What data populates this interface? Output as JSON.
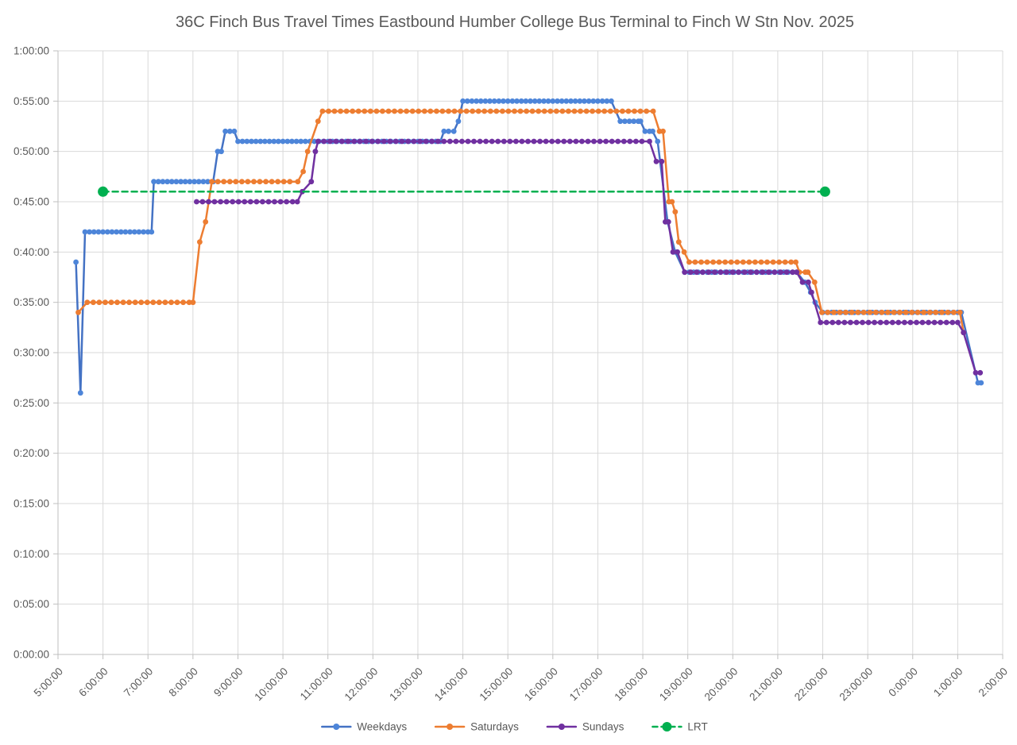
{
  "chart_data": {
    "type": "line",
    "title": "36C Finch Bus Travel Times Eastbound Humber College Bus Terminal to Finch W Stn Nov. 2025",
    "xlabel": "",
    "ylabel": "",
    "grid": true,
    "legend_position": "bottom",
    "x_axis": {
      "start_hour": 5,
      "end_hour": 26,
      "tick_interval_hours": 1,
      "labels": [
        "5:00:00",
        "6:00:00",
        "7:00:00",
        "8:00:00",
        "9:00:00",
        "10:00:00",
        "11:00:00",
        "12:00:00",
        "13:00:00",
        "14:00:00",
        "15:00:00",
        "16:00:00",
        "17:00:00",
        "18:00:00",
        "19:00:00",
        "20:00:00",
        "21:00:00",
        "22:00:00",
        "23:00:00",
        "0:00:00",
        "1:00:00",
        "2:00:00"
      ]
    },
    "y_axis": {
      "min_minutes": 0,
      "max_minutes": 60,
      "step_minutes": 5,
      "labels": [
        "0:00:00",
        "0:05:00",
        "0:10:00",
        "0:15:00",
        "0:20:00",
        "0:25:00",
        "0:30:00",
        "0:35:00",
        "0:40:00",
        "0:45:00",
        "0:50:00",
        "0:55:00",
        "1:00:00"
      ]
    },
    "series": [
      {
        "name": "Weekdays",
        "color": "#4472C4",
        "marker_color": "#4d85d9",
        "dash": null,
        "marker_interval_minutes": 6,
        "points_format": [
          "hour_24h_decimal",
          "travel_minutes"
        ],
        "points": [
          [
            5.4,
            39
          ],
          [
            5.5,
            26
          ],
          [
            5.6,
            42
          ],
          [
            7.08,
            42
          ],
          [
            7.13,
            47
          ],
          [
            8.45,
            47
          ],
          [
            8.55,
            50
          ],
          [
            8.63,
            50
          ],
          [
            8.72,
            52
          ],
          [
            8.92,
            52
          ],
          [
            9.0,
            51
          ],
          [
            13.5,
            51
          ],
          [
            13.58,
            52
          ],
          [
            13.8,
            52
          ],
          [
            13.9,
            53
          ],
          [
            14.0,
            55
          ],
          [
            17.3,
            55
          ],
          [
            17.5,
            53
          ],
          [
            17.95,
            53
          ],
          [
            18.05,
            52
          ],
          [
            18.22,
            52
          ],
          [
            18.33,
            51
          ],
          [
            18.55,
            43
          ],
          [
            18.72,
            40
          ],
          [
            18.93,
            38
          ],
          [
            21.42,
            38
          ],
          [
            21.6,
            37
          ],
          [
            21.73,
            36
          ],
          [
            21.83,
            35
          ],
          [
            22.0,
            34
          ],
          [
            25.08,
            34
          ],
          [
            25.45,
            27
          ],
          [
            25.52,
            27
          ]
        ]
      },
      {
        "name": "Saturdays",
        "color": "#ED7D31",
        "marker_color": "#ED7D31",
        "dash": null,
        "marker_interval_minutes": 8,
        "points_format": [
          "hour_24h_decimal",
          "travel_minutes"
        ],
        "points": [
          [
            5.45,
            34
          ],
          [
            5.65,
            35
          ],
          [
            8.0,
            35
          ],
          [
            8.15,
            41
          ],
          [
            8.28,
            43
          ],
          [
            8.42,
            47
          ],
          [
            10.33,
            47
          ],
          [
            10.45,
            48
          ],
          [
            10.55,
            50
          ],
          [
            10.78,
            53
          ],
          [
            10.88,
            54
          ],
          [
            18.23,
            54
          ],
          [
            18.37,
            52
          ],
          [
            18.45,
            52
          ],
          [
            18.58,
            45
          ],
          [
            18.65,
            45
          ],
          [
            18.72,
            44
          ],
          [
            18.8,
            41
          ],
          [
            18.92,
            40
          ],
          [
            19.03,
            39
          ],
          [
            21.4,
            39
          ],
          [
            21.48,
            38
          ],
          [
            21.67,
            38
          ],
          [
            21.82,
            37
          ],
          [
            21.98,
            34
          ],
          [
            25.05,
            34
          ],
          [
            25.13,
            32
          ]
        ]
      },
      {
        "name": "Sundays",
        "color": "#7030A0",
        "marker_color": "#7030A0",
        "dash": null,
        "marker_interval_minutes": 8,
        "points_format": [
          "hour_24h_decimal",
          "travel_minutes"
        ],
        "points": [
          [
            8.08,
            45
          ],
          [
            10.32,
            45
          ],
          [
            10.43,
            46
          ],
          [
            10.63,
            47
          ],
          [
            10.72,
            50
          ],
          [
            10.78,
            51
          ],
          [
            18.15,
            51
          ],
          [
            18.3,
            49
          ],
          [
            18.42,
            49
          ],
          [
            18.5,
            43
          ],
          [
            18.57,
            43
          ],
          [
            18.67,
            40
          ],
          [
            18.77,
            40
          ],
          [
            18.93,
            38
          ],
          [
            21.42,
            38
          ],
          [
            21.55,
            37
          ],
          [
            21.68,
            37
          ],
          [
            21.75,
            36
          ],
          [
            21.95,
            33
          ],
          [
            25.0,
            33
          ],
          [
            25.13,
            32
          ],
          [
            25.4,
            28
          ],
          [
            25.5,
            28
          ]
        ]
      },
      {
        "name": "LRT",
        "color": "#00B050",
        "marker_color": "#00B050",
        "dash": "7 5",
        "markers_ends_only": true,
        "points_format": [
          "hour_24h_decimal",
          "travel_minutes"
        ],
        "points": [
          [
            6.0,
            46
          ],
          [
            22.05,
            46
          ]
        ]
      }
    ],
    "colors": {
      "gridline": "#D9D9D9",
      "axis_line": "#BFBFBF",
      "label_text": "#595959",
      "background": "#FFFFFF"
    }
  }
}
